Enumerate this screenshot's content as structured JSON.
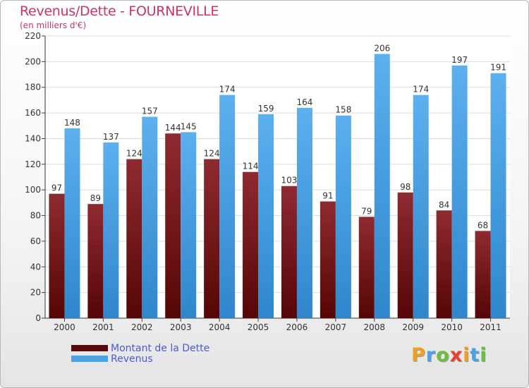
{
  "chart_data": {
    "type": "bar",
    "title": "Revenus/Dette - FOURNEVILLE",
    "ylabel": "(en milliers d'€)",
    "xlabel": "",
    "categories": [
      "2000",
      "2001",
      "2002",
      "2003",
      "2004",
      "2005",
      "2006",
      "2007",
      "2008",
      "2009",
      "2010",
      "2011"
    ],
    "series": [
      {
        "name": "Montant de la Dette",
        "color": "#7a1a1e",
        "values": [
          97,
          89,
          124,
          144,
          124,
          114,
          103,
          91,
          79,
          98,
          84,
          68
        ]
      },
      {
        "name": "Revenus",
        "color": "#4aa3e6",
        "values": [
          148,
          137,
          157,
          145,
          174,
          159,
          164,
          158,
          206,
          174,
          197,
          191
        ]
      }
    ],
    "ylim": [
      0,
      220
    ],
    "yticks": [
      0,
      20,
      40,
      60,
      80,
      100,
      120,
      140,
      160,
      180,
      200,
      220
    ],
    "grid": true,
    "legend": "bottom-left"
  },
  "legend_items": [
    {
      "label": "Montant de la Dette",
      "color": "#5a0a0a"
    },
    {
      "label": "Revenus",
      "color": "#4aa3e6"
    }
  ],
  "logo": {
    "letters": [
      "P",
      "r",
      "o",
      "x",
      "i",
      "t",
      "i"
    ],
    "colors": [
      "#f0a020",
      "#4aa3e6",
      "#6cbf3c",
      "#e8402a",
      "#f0a020",
      "#4aa3e6",
      "#6cbf3c"
    ]
  }
}
